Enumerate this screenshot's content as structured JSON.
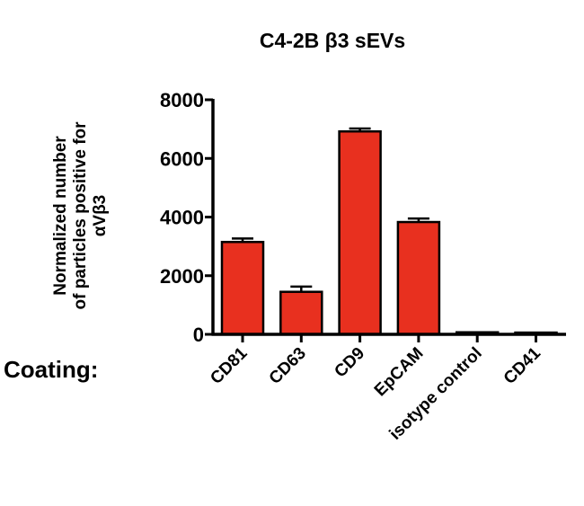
{
  "chart_data": {
    "type": "bar",
    "title": "C4-2B β3 sEVs",
    "ylabel_lines": [
      "Normalized number",
      "of particles positive for",
      "αVβ3"
    ],
    "xlabel": "Coating:",
    "categories": [
      "CD81",
      "CD63",
      "CD9",
      "EpCAM",
      "isotype control",
      "CD41"
    ],
    "values": [
      3150,
      1450,
      6920,
      3830,
      70,
      60
    ],
    "errors": [
      120,
      180,
      100,
      120,
      0,
      0
    ],
    "ylim": [
      0,
      8000
    ],
    "yticks": [
      0,
      2000,
      4000,
      6000,
      8000
    ],
    "grid": false,
    "bar_color": "#e8301f"
  }
}
